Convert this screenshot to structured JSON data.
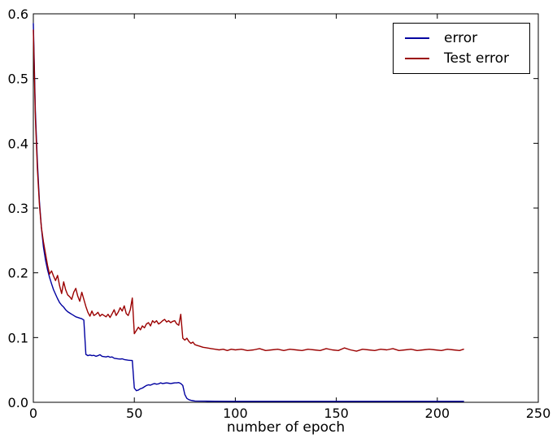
{
  "figure": {
    "background": "#ffffff",
    "axis_color": "#000000"
  },
  "chart_data": {
    "type": "line",
    "title": "",
    "xlabel": "number of epoch",
    "ylabel": "",
    "xlim": [
      0,
      250
    ],
    "ylim": [
      0.0,
      0.6
    ],
    "x_ticks": [
      "0",
      "50",
      "100",
      "150",
      "200",
      "250"
    ],
    "y_ticks": [
      "0.0",
      "0.1",
      "0.2",
      "0.3",
      "0.4",
      "0.5",
      "0.6"
    ],
    "grid": false,
    "legend_position": "upper-right",
    "series": [
      {
        "name": "error",
        "color": "#0000A0",
        "points": [
          [
            0,
            0.585
          ],
          [
            1,
            0.45
          ],
          [
            2,
            0.37
          ],
          [
            3,
            0.31
          ],
          [
            4,
            0.27
          ],
          [
            5,
            0.24
          ],
          [
            6,
            0.22
          ],
          [
            7,
            0.205
          ],
          [
            8,
            0.193
          ],
          [
            9,
            0.183
          ],
          [
            10,
            0.174
          ],
          [
            11,
            0.167
          ],
          [
            12,
            0.16
          ],
          [
            13,
            0.154
          ],
          [
            14,
            0.15
          ],
          [
            15,
            0.147
          ],
          [
            16,
            0.143
          ],
          [
            17,
            0.14
          ],
          [
            18,
            0.138
          ],
          [
            19,
            0.136
          ],
          [
            20,
            0.134
          ],
          [
            21,
            0.132
          ],
          [
            22,
            0.131
          ],
          [
            23,
            0.13
          ],
          [
            24,
            0.129
          ],
          [
            25,
            0.127
          ],
          [
            26,
            0.074
          ],
          [
            27,
            0.072
          ],
          [
            28,
            0.073
          ],
          [
            29,
            0.072
          ],
          [
            30,
            0.0725
          ],
          [
            31,
            0.071
          ],
          [
            32,
            0.072
          ],
          [
            33,
            0.0735
          ],
          [
            34,
            0.071
          ],
          [
            35,
            0.0705
          ],
          [
            36,
            0.07
          ],
          [
            37,
            0.071
          ],
          [
            38,
            0.0695
          ],
          [
            39,
            0.07
          ],
          [
            40,
            0.068
          ],
          [
            41,
            0.0675
          ],
          [
            42,
            0.067
          ],
          [
            43,
            0.0668
          ],
          [
            44,
            0.0672
          ],
          [
            45,
            0.066
          ],
          [
            46,
            0.0655
          ],
          [
            47,
            0.065
          ],
          [
            48,
            0.0648
          ],
          [
            49,
            0.0645
          ],
          [
            50,
            0.022
          ],
          [
            51,
            0.018
          ],
          [
            52,
            0.019
          ],
          [
            53,
            0.021
          ],
          [
            54,
            0.022
          ],
          [
            55,
            0.024
          ],
          [
            56,
            0.026
          ],
          [
            57,
            0.027
          ],
          [
            58,
            0.0265
          ],
          [
            59,
            0.028
          ],
          [
            60,
            0.029
          ],
          [
            61,
            0.028
          ],
          [
            62,
            0.0285
          ],
          [
            63,
            0.03
          ],
          [
            64,
            0.029
          ],
          [
            65,
            0.0295
          ],
          [
            66,
            0.03
          ],
          [
            67,
            0.0295
          ],
          [
            68,
            0.029
          ],
          [
            69,
            0.0295
          ],
          [
            70,
            0.03
          ],
          [
            71,
            0.03
          ],
          [
            72,
            0.0305
          ],
          [
            73,
            0.029
          ],
          [
            74,
            0.026
          ],
          [
            75,
            0.012
          ],
          [
            76,
            0.006
          ],
          [
            77,
            0.004
          ],
          [
            78,
            0.003
          ],
          [
            79,
            0.0025
          ],
          [
            80,
            0.002
          ],
          [
            85,
            0.0018
          ],
          [
            90,
            0.0016
          ],
          [
            100,
            0.0015
          ],
          [
            110,
            0.0015
          ],
          [
            120,
            0.0015
          ],
          [
            130,
            0.0015
          ],
          [
            140,
            0.0015
          ],
          [
            150,
            0.0015
          ],
          [
            160,
            0.0015
          ],
          [
            170,
            0.0015
          ],
          [
            180,
            0.0015
          ],
          [
            190,
            0.0015
          ],
          [
            200,
            0.0015
          ],
          [
            210,
            0.0015
          ],
          [
            213,
            0.0015
          ]
        ]
      },
      {
        "name": "Test error",
        "color": "#9B0000",
        "points": [
          [
            0,
            0.575
          ],
          [
            1,
            0.44
          ],
          [
            2,
            0.36
          ],
          [
            3,
            0.305
          ],
          [
            4,
            0.27
          ],
          [
            5,
            0.248
          ],
          [
            6,
            0.23
          ],
          [
            7,
            0.212
          ],
          [
            8,
            0.198
          ],
          [
            9,
            0.203
          ],
          [
            10,
            0.195
          ],
          [
            11,
            0.188
          ],
          [
            12,
            0.196
          ],
          [
            13,
            0.18
          ],
          [
            14,
            0.168
          ],
          [
            15,
            0.186
          ],
          [
            16,
            0.174
          ],
          [
            17,
            0.166
          ],
          [
            18,
            0.163
          ],
          [
            19,
            0.159
          ],
          [
            20,
            0.17
          ],
          [
            21,
            0.176
          ],
          [
            22,
            0.164
          ],
          [
            23,
            0.156
          ],
          [
            24,
            0.17
          ],
          [
            25,
            0.159
          ],
          [
            26,
            0.148
          ],
          [
            27,
            0.139
          ],
          [
            28,
            0.133
          ],
          [
            29,
            0.141
          ],
          [
            30,
            0.134
          ],
          [
            31,
            0.136
          ],
          [
            32,
            0.139
          ],
          [
            33,
            0.133
          ],
          [
            34,
            0.136
          ],
          [
            35,
            0.134
          ],
          [
            36,
            0.132
          ],
          [
            37,
            0.136
          ],
          [
            38,
            0.131
          ],
          [
            39,
            0.137
          ],
          [
            40,
            0.143
          ],
          [
            41,
            0.134
          ],
          [
            42,
            0.139
          ],
          [
            43,
            0.146
          ],
          [
            44,
            0.141
          ],
          [
            45,
            0.149
          ],
          [
            46,
            0.137
          ],
          [
            47,
            0.134
          ],
          [
            48,
            0.143
          ],
          [
            49,
            0.161
          ],
          [
            50,
            0.106
          ],
          [
            51,
            0.111
          ],
          [
            52,
            0.116
          ],
          [
            53,
            0.112
          ],
          [
            54,
            0.118
          ],
          [
            55,
            0.115
          ],
          [
            56,
            0.121
          ],
          [
            57,
            0.123
          ],
          [
            58,
            0.118
          ],
          [
            59,
            0.126
          ],
          [
            60,
            0.123
          ],
          [
            61,
            0.126
          ],
          [
            62,
            0.121
          ],
          [
            63,
            0.123
          ],
          [
            64,
            0.126
          ],
          [
            65,
            0.128
          ],
          [
            66,
            0.124
          ],
          [
            67,
            0.126
          ],
          [
            68,
            0.123
          ],
          [
            69,
            0.125
          ],
          [
            70,
            0.126
          ],
          [
            71,
            0.121
          ],
          [
            72,
            0.119
          ],
          [
            73,
            0.136
          ],
          [
            74,
            0.099
          ],
          [
            75,
            0.096
          ],
          [
            76,
            0.099
          ],
          [
            77,
            0.094
          ],
          [
            78,
            0.091
          ],
          [
            79,
            0.093
          ],
          [
            80,
            0.089
          ],
          [
            81,
            0.088
          ],
          [
            82,
            0.087
          ],
          [
            84,
            0.085
          ],
          [
            86,
            0.084
          ],
          [
            88,
            0.083
          ],
          [
            90,
            0.082
          ],
          [
            92,
            0.081
          ],
          [
            94,
            0.082
          ],
          [
            96,
            0.08
          ],
          [
            98,
            0.082
          ],
          [
            100,
            0.081
          ],
          [
            103,
            0.082
          ],
          [
            106,
            0.08
          ],
          [
            109,
            0.081
          ],
          [
            112,
            0.083
          ],
          [
            115,
            0.08
          ],
          [
            118,
            0.081
          ],
          [
            121,
            0.082
          ],
          [
            124,
            0.08
          ],
          [
            127,
            0.082
          ],
          [
            130,
            0.081
          ],
          [
            133,
            0.08
          ],
          [
            136,
            0.082
          ],
          [
            139,
            0.081
          ],
          [
            142,
            0.08
          ],
          [
            145,
            0.083
          ],
          [
            148,
            0.081
          ],
          [
            151,
            0.08
          ],
          [
            154,
            0.084
          ],
          [
            157,
            0.081
          ],
          [
            160,
            0.079
          ],
          [
            163,
            0.082
          ],
          [
            166,
            0.081
          ],
          [
            169,
            0.08
          ],
          [
            172,
            0.082
          ],
          [
            175,
            0.081
          ],
          [
            178,
            0.083
          ],
          [
            181,
            0.08
          ],
          [
            184,
            0.081
          ],
          [
            187,
            0.082
          ],
          [
            190,
            0.08
          ],
          [
            193,
            0.081
          ],
          [
            196,
            0.082
          ],
          [
            199,
            0.081
          ],
          [
            202,
            0.08
          ],
          [
            205,
            0.082
          ],
          [
            208,
            0.081
          ],
          [
            211,
            0.08
          ],
          [
            213,
            0.082
          ]
        ]
      }
    ]
  }
}
